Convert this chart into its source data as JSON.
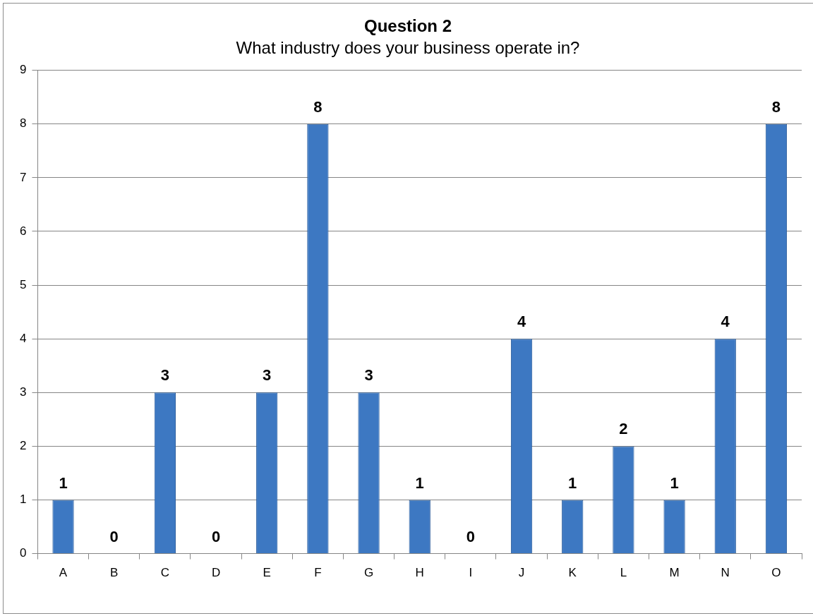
{
  "chart_data": {
    "type": "bar",
    "title": "Question 2",
    "subtitle": "What industry does your business operate in?",
    "categories": [
      "A",
      "B",
      "C",
      "D",
      "E",
      "F",
      "G",
      "H",
      "I",
      "J",
      "K",
      "L",
      "M",
      "N",
      "O"
    ],
    "values": [
      1,
      0,
      3,
      0,
      3,
      8,
      3,
      1,
      0,
      4,
      1,
      2,
      1,
      4,
      8
    ],
    "color": "#3d78c2",
    "ylim": [
      0,
      9
    ],
    "yticks": [
      0,
      1,
      2,
      3,
      4,
      5,
      6,
      7,
      8,
      9
    ],
    "grid": "y",
    "data_labels": true,
    "legend": false
  }
}
